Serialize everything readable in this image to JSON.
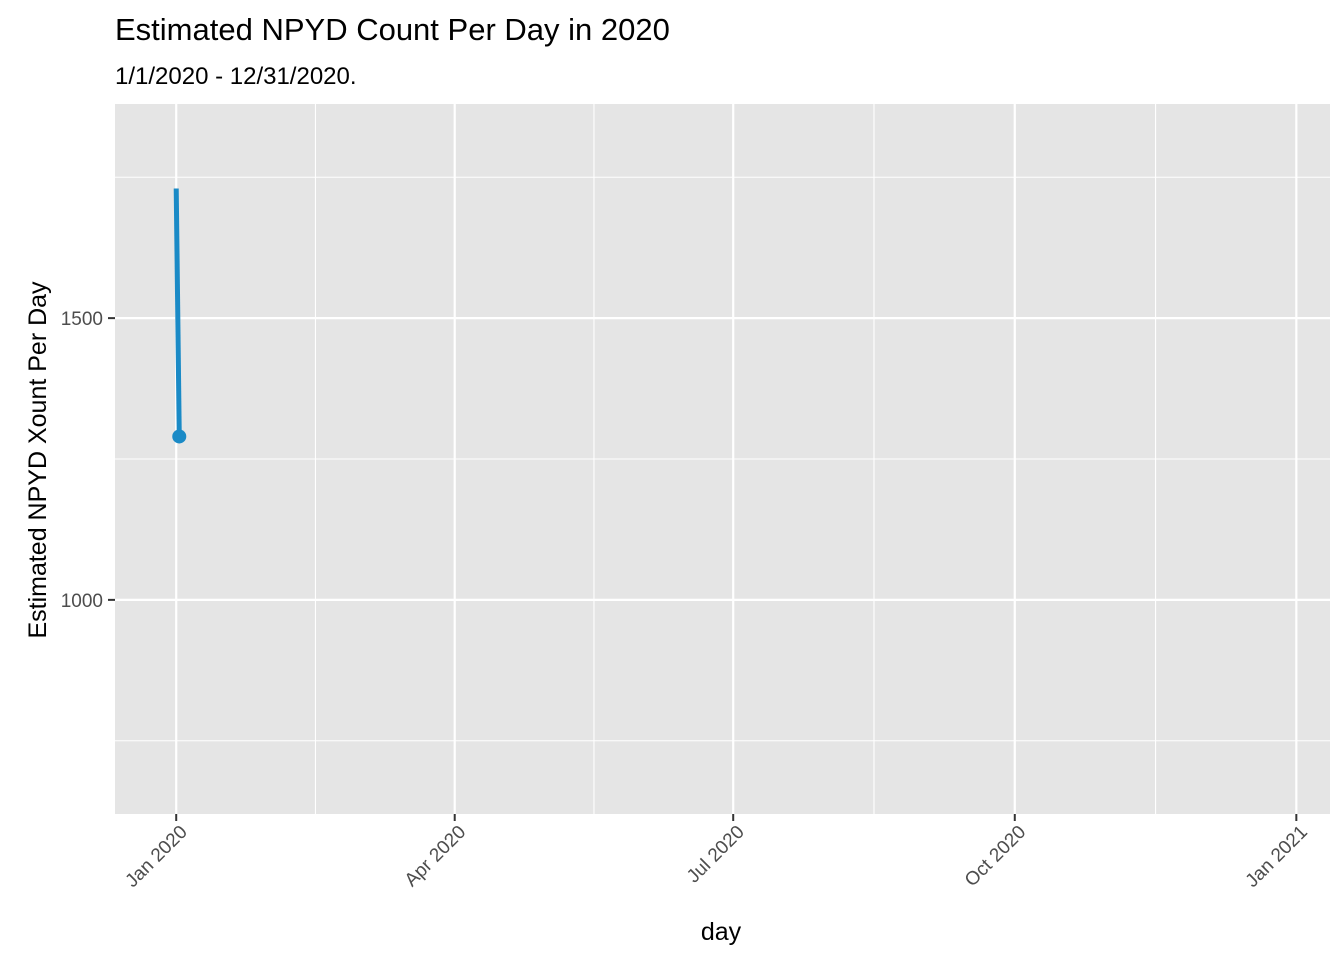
{
  "chart_data": {
    "type": "line",
    "title": "Estimated NPYD Count Per Day in 2020",
    "subtitle": "1/1/2020 - 12/31/2020.",
    "xlabel": "day",
    "ylabel": "Estimated NPYD Xount Per Day",
    "x_ticks": [
      "Jan 2020",
      "Apr 2020",
      "Jul 2020",
      "Oct 2020",
      "Jan 2021"
    ],
    "x_tick_dates": [
      "2020-01-01",
      "2020-04-01",
      "2020-07-01",
      "2020-10-01",
      "2021-01-01"
    ],
    "xlim": [
      "2019-12-12",
      "2021-01-12"
    ],
    "y_ticks": [
      1000,
      1500
    ],
    "ylim": [
      620,
      1880
    ],
    "grid": true,
    "series": [
      {
        "x": [
          "2020-01-01",
          "2020-01-02"
        ],
        "values": [
          1730,
          1290
        ],
        "point_at_last": true
      }
    ],
    "colors": {
      "line": "#1a8ac6",
      "panel": "#e5e5e5",
      "grid": "#ffffff",
      "tick_text": "#4d4d4d",
      "tick_mark": "#333333"
    }
  }
}
